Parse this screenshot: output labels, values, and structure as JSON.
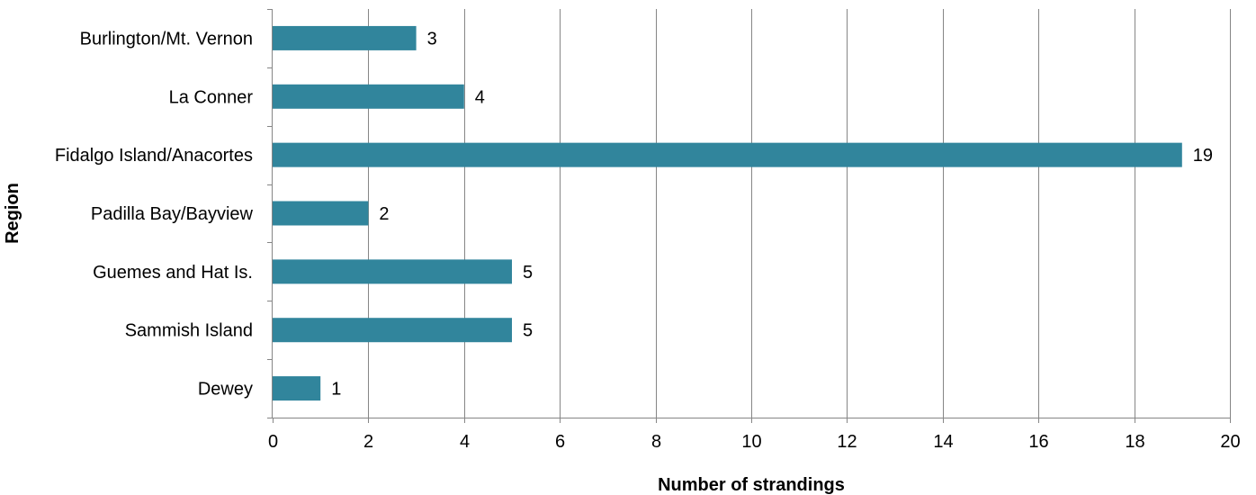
{
  "chart_data": {
    "type": "bar",
    "orientation": "horizontal",
    "categories": [
      "Burlington/Mt. Vernon",
      "La Conner",
      "Fidalgo Island/Anacortes",
      "Padilla Bay/Bayview",
      "Guemes and Hat Is.",
      "Sammish Island",
      "Dewey"
    ],
    "values": [
      3,
      4,
      19,
      2,
      5,
      5,
      1
    ],
    "data_labels": [
      "3",
      "4",
      "19",
      "2",
      "5",
      "5",
      "1"
    ],
    "title": "",
    "xlabel": "Number of strandings",
    "ylabel": "Region",
    "xlim": [
      0,
      20
    ],
    "xticks": [
      0,
      2,
      4,
      6,
      8,
      10,
      12,
      14,
      16,
      18,
      20
    ],
    "xtick_labels": [
      "0",
      "2",
      "4",
      "6",
      "8",
      "10",
      "12",
      "14",
      "16",
      "18",
      "20"
    ],
    "grid": "vertical",
    "legend": "none",
    "bar_color": "#31859C",
    "grid_color": "#868686"
  }
}
